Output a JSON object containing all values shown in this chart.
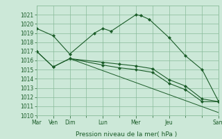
{
  "bg_color": "#cce8d8",
  "grid_color": "#88bb99",
  "line_color": "#1a5c28",
  "marker_color": "#1a5c28",
  "xlabel": "Pression niveau de la mer( hPa )",
  "ylim": [
    1010,
    1022
  ],
  "yticks": [
    1010,
    1011,
    1012,
    1013,
    1014,
    1015,
    1016,
    1017,
    1018,
    1019,
    1020,
    1021
  ],
  "xlim": [
    0,
    11
  ],
  "xtick_major_labels": [
    "Mar",
    "Ven",
    "Dim",
    "Lun",
    "Mer",
    "Jeu",
    "Sam"
  ],
  "xtick_major_positions": [
    0,
    1,
    2,
    4,
    6,
    8,
    11
  ],
  "series": [
    {
      "x": [
        0,
        1,
        2,
        3.5,
        4.0,
        4.5,
        6.0,
        6.3,
        6.8,
        8,
        9,
        10,
        11
      ],
      "y": [
        1019.5,
        1018.7,
        1016.7,
        1019.0,
        1019.5,
        1019.2,
        1021.0,
        1020.9,
        1020.5,
        1018.5,
        1016.5,
        1015.0,
        1011.5
      ],
      "has_markers": true
    },
    {
      "x": [
        0,
        1,
        2,
        4,
        5,
        6,
        7,
        8,
        9,
        10,
        11
      ],
      "y": [
        1017.0,
        1015.3,
        1016.2,
        1015.8,
        1015.6,
        1015.4,
        1015.1,
        1013.9,
        1013.2,
        1011.8,
        1011.5
      ],
      "has_markers": true
    },
    {
      "x": [
        0,
        1,
        2,
        4,
        5,
        6,
        7,
        8,
        9,
        10,
        11
      ],
      "y": [
        1017.0,
        1015.3,
        1016.2,
        1015.5,
        1015.2,
        1015.0,
        1014.7,
        1013.5,
        1012.8,
        1011.5,
        1011.5
      ],
      "has_markers": true
    },
    {
      "x": [
        2,
        11
      ],
      "y": [
        1016.2,
        1010.3
      ],
      "has_markers": false
    }
  ]
}
